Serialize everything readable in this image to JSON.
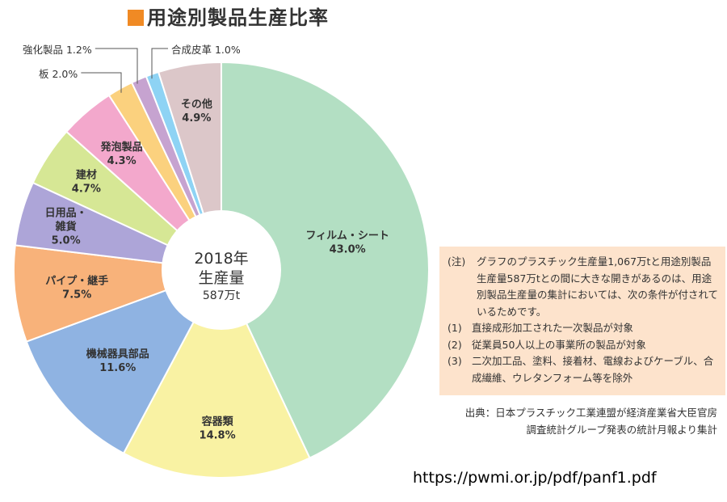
{
  "title": "用途別製品生産比率",
  "chart_data": {
    "type": "pie",
    "center_label": [
      "2018年",
      "生産量",
      "587万t"
    ],
    "slices": [
      {
        "name": "フィルム・シート",
        "value": 43.0,
        "label": "43.0%",
        "color": "#b3dfc3"
      },
      {
        "name": "容器類",
        "value": 14.8,
        "label": "14.8%",
        "color": "#f9f2a3"
      },
      {
        "name": "機械器具部品",
        "value": 11.6,
        "label": "11.6%",
        "color": "#8fb3e2"
      },
      {
        "name": "パイプ・継手",
        "value": 7.5,
        "label": "7.5%",
        "color": "#f8b27a"
      },
      {
        "name": "日用品・雑貨",
        "value": 5.0,
        "label": "5.0%",
        "color": "#ada5d8"
      },
      {
        "name": "建材",
        "value": 4.7,
        "label": "4.7%",
        "color": "#d6e795"
      },
      {
        "name": "発泡製品",
        "value": 4.3,
        "label": "4.3%",
        "color": "#f3a8cc"
      },
      {
        "name": "板",
        "value": 2.0,
        "label": "2.0%",
        "color": "#fbd17e"
      },
      {
        "name": "強化製品",
        "value": 1.2,
        "label": "1.2%",
        "color": "#c6a3d0"
      },
      {
        "name": "合成皮革",
        "value": 1.0,
        "label": "1.0%",
        "color": "#8ed3f4"
      },
      {
        "name": "その他",
        "value": 4.9,
        "label": "4.9%",
        "color": "#dcc7c9"
      }
    ]
  },
  "note": {
    "head": "(注)",
    "text": "グラフのプラスチック生産量1,067万tと用途別製品生産量587万tとの間に大きな開きがあるのは、用途別製品生産量の集計においては、次の条件が付されているためです。",
    "items": [
      {
        "num": "(1)",
        "text": "直接成形加工された一次製品が対象"
      },
      {
        "num": "(2)",
        "text": "従業員50人以上の事業所の製品が対象"
      },
      {
        "num": "(3)",
        "text": "二次加工品、塗料、接着材、電線およびケーブル、合成繊維、ウレタンフォーム等を除外"
      }
    ]
  },
  "source": [
    "出典：日本プラスチック工業連盟が経済産業省大臣官房",
    "調査統計グループ発表の統計月報より集計"
  ],
  "url": "https://pwmi.or.jp/pdf/panf1.pdf"
}
